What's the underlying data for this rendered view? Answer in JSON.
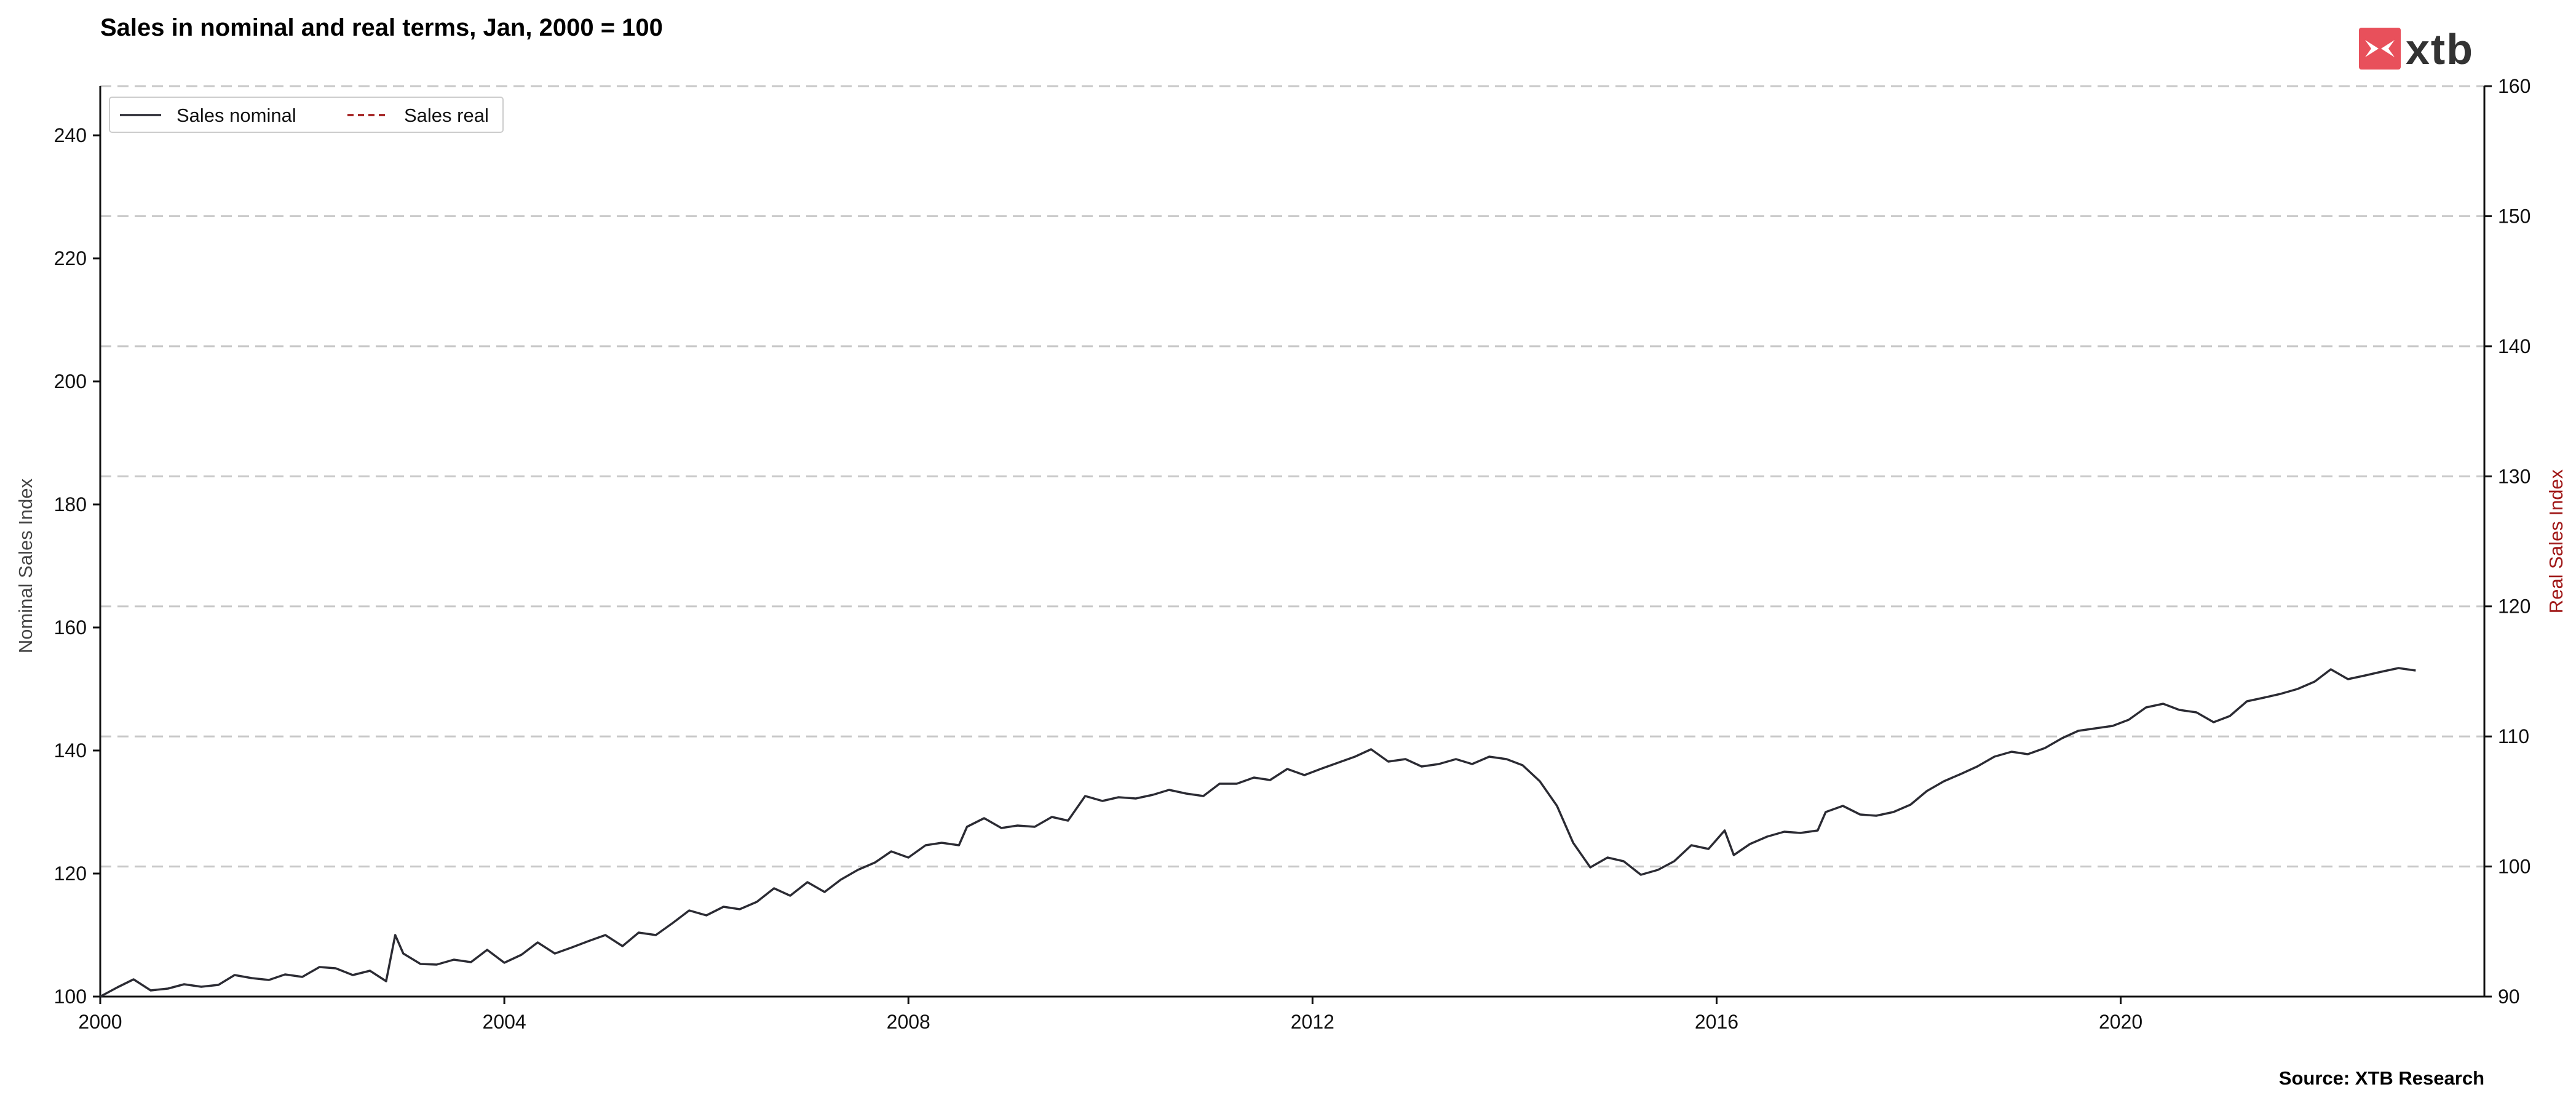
{
  "brand": {
    "logo_text": "xtb",
    "logo_color": "#e8505b"
  },
  "source_text": "Source: XTB Research",
  "chart_data": {
    "type": "line",
    "title": "Sales in nominal and real terms, Jan, 2000 = 100",
    "xlabel": "",
    "ylabel_left": "Nominal Sales Index",
    "ylabel_right": "Real Sales Index",
    "x_ticks": [
      "2000",
      "2004",
      "2008",
      "2012",
      "2016",
      "2020"
    ],
    "x_range": [
      2000.0,
      2023.6
    ],
    "y_left": {
      "range": [
        100,
        248
      ],
      "ticks": [
        100,
        120,
        140,
        160,
        180,
        200,
        220,
        240
      ]
    },
    "y_right": {
      "range": [
        90,
        160
      ],
      "ticks": [
        90,
        100,
        110,
        120,
        130,
        140,
        150,
        160
      ]
    },
    "grid": {
      "horizontal": true,
      "style": "dashed",
      "aligned_to": "right axis"
    },
    "legend": {
      "placement": "top-left"
    },
    "colors": {
      "nominal": "#2b2b33",
      "real": "#a01818",
      "grid": "#c8c8c8",
      "right_axis_label": "#a01818"
    },
    "series": [
      {
        "name": "Sales nominal",
        "axis": "left",
        "style": "solid",
        "points": [
          [
            2000.0,
            100.0
          ],
          [
            2000.17,
            101.5
          ],
          [
            2000.33,
            102.8
          ],
          [
            2000.5,
            101.0
          ],
          [
            2000.67,
            101.3
          ],
          [
            2000.83,
            102.0
          ],
          [
            2001.0,
            101.6
          ],
          [
            2001.17,
            101.9
          ],
          [
            2001.33,
            103.5
          ],
          [
            2001.5,
            103.0
          ],
          [
            2001.67,
            102.7
          ],
          [
            2001.83,
            103.6
          ],
          [
            2002.0,
            103.2
          ],
          [
            2002.17,
            104.8
          ],
          [
            2002.33,
            104.6
          ],
          [
            2002.5,
            103.5
          ],
          [
            2002.67,
            104.2
          ],
          [
            2002.83,
            102.5
          ],
          [
            2002.92,
            110.0
          ],
          [
            2003.0,
            107.0
          ],
          [
            2003.17,
            105.3
          ],
          [
            2003.33,
            105.2
          ],
          [
            2003.5,
            106.0
          ],
          [
            2003.67,
            105.6
          ],
          [
            2003.83,
            107.6
          ],
          [
            2004.0,
            105.5
          ],
          [
            2004.17,
            106.8
          ],
          [
            2004.33,
            108.8
          ],
          [
            2004.5,
            107.0
          ],
          [
            2004.67,
            108.0
          ],
          [
            2004.83,
            109.0
          ],
          [
            2005.0,
            110.0
          ],
          [
            2005.17,
            108.2
          ],
          [
            2005.33,
            110.4
          ],
          [
            2005.5,
            110.0
          ],
          [
            2005.67,
            112.0
          ],
          [
            2005.83,
            114.0
          ],
          [
            2006.0,
            113.2
          ],
          [
            2006.17,
            114.6
          ],
          [
            2006.33,
            114.2
          ],
          [
            2006.5,
            115.4
          ],
          [
            2006.67,
            117.6
          ],
          [
            2006.83,
            116.4
          ],
          [
            2007.0,
            118.6
          ],
          [
            2007.17,
            117.0
          ],
          [
            2007.33,
            119.0
          ],
          [
            2007.5,
            120.6
          ],
          [
            2007.67,
            121.8
          ],
          [
            2007.83,
            123.6
          ],
          [
            2008.0,
            122.6
          ],
          [
            2008.17,
            124.6
          ],
          [
            2008.33,
            125.0
          ],
          [
            2008.5,
            124.6
          ],
          [
            2008.58,
            127.6
          ],
          [
            2008.75,
            129.0
          ],
          [
            2008.92,
            127.4
          ],
          [
            2009.08,
            127.8
          ],
          [
            2009.25,
            127.6
          ],
          [
            2009.42,
            129.2
          ],
          [
            2009.58,
            128.6
          ],
          [
            2009.75,
            132.6
          ],
          [
            2009.92,
            131.8
          ],
          [
            2010.08,
            132.4
          ],
          [
            2010.25,
            132.2
          ],
          [
            2010.42,
            132.8
          ],
          [
            2010.58,
            133.6
          ],
          [
            2010.75,
            133.0
          ],
          [
            2010.92,
            132.6
          ],
          [
            2011.08,
            134.6
          ],
          [
            2011.25,
            134.6
          ],
          [
            2011.42,
            135.6
          ],
          [
            2011.58,
            135.2
          ],
          [
            2011.75,
            137.0
          ],
          [
            2011.92,
            136.0
          ],
          [
            2012.08,
            137.0
          ],
          [
            2012.25,
            138.0
          ],
          [
            2012.42,
            139.0
          ],
          [
            2012.58,
            140.2
          ],
          [
            2012.75,
            138.2
          ],
          [
            2012.92,
            138.6
          ],
          [
            2013.08,
            137.4
          ],
          [
            2013.25,
            137.8
          ],
          [
            2013.42,
            138.6
          ],
          [
            2013.58,
            137.8
          ],
          [
            2013.75,
            139.0
          ],
          [
            2013.92,
            138.6
          ],
          [
            2014.08,
            137.6
          ],
          [
            2014.25,
            135.0
          ],
          [
            2014.42,
            131.0
          ],
          [
            2014.58,
            125.0
          ],
          [
            2014.75,
            121.0
          ],
          [
            2014.92,
            122.6
          ],
          [
            2015.08,
            122.0
          ],
          [
            2015.25,
            119.8
          ],
          [
            2015.42,
            120.6
          ],
          [
            2015.58,
            122.0
          ],
          [
            2015.75,
            124.6
          ],
          [
            2015.92,
            124.0
          ],
          [
            2016.08,
            127.0
          ],
          [
            2016.17,
            123.0
          ],
          [
            2016.33,
            124.8
          ],
          [
            2016.5,
            126.0
          ],
          [
            2016.67,
            126.8
          ],
          [
            2016.83,
            126.6
          ],
          [
            2017.0,
            127.0
          ],
          [
            2017.08,
            130.0
          ],
          [
            2017.25,
            131.0
          ],
          [
            2017.42,
            129.6
          ],
          [
            2017.58,
            129.4
          ],
          [
            2017.75,
            130.0
          ],
          [
            2017.92,
            131.2
          ],
          [
            2018.08,
            133.4
          ],
          [
            2018.25,
            135.0
          ],
          [
            2018.42,
            136.2
          ],
          [
            2018.58,
            137.4
          ],
          [
            2018.75,
            139.0
          ],
          [
            2018.92,
            139.8
          ],
          [
            2019.08,
            139.4
          ],
          [
            2019.25,
            140.4
          ],
          [
            2019.42,
            142.0
          ],
          [
            2019.58,
            143.2
          ],
          [
            2019.75,
            143.6
          ],
          [
            2019.92,
            144.0
          ],
          [
            2020.08,
            145.0
          ],
          [
            2020.25,
            147.0
          ],
          [
            2020.42,
            147.6
          ],
          [
            2020.58,
            146.6
          ],
          [
            2020.75,
            146.2
          ],
          [
            2020.92,
            144.6
          ],
          [
            2021.08,
            145.6
          ],
          [
            2021.25,
            148.0
          ],
          [
            2021.42,
            148.6
          ],
          [
            2021.58,
            149.2
          ],
          [
            2021.75,
            150.0
          ],
          [
            2021.92,
            151.2
          ],
          [
            2022.08,
            153.2
          ],
          [
            2022.25,
            151.6
          ],
          [
            2022.42,
            152.2
          ],
          [
            2022.58,
            152.8
          ],
          [
            2022.75,
            153.4
          ],
          [
            2022.92,
            153.0
          ]
        ]
      },
      {
        "name": "Sales real",
        "axis": "right",
        "style": "dashed",
        "points": []
      }
    ]
  }
}
